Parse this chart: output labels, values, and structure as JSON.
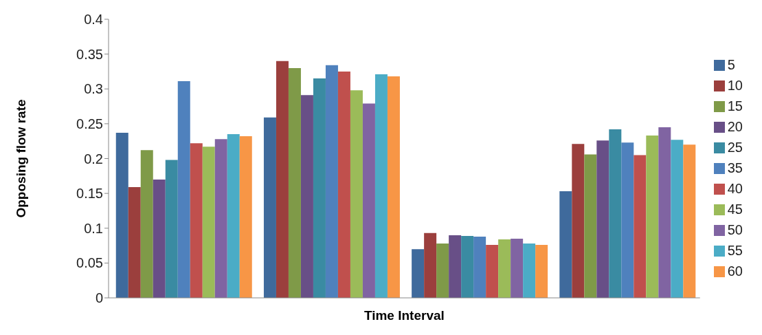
{
  "chart_data": {
    "type": "bar",
    "xlabel": "Time Interval",
    "ylabel": "Opposing flow rate",
    "categories": [
      null,
      null,
      null,
      null
    ],
    "series": [
      {
        "name": "5",
        "color": "#3f6a9c",
        "values": [
          0.237,
          0.259,
          0.07,
          0.153
        ]
      },
      {
        "name": "10",
        "color": "#9b3f3d",
        "values": [
          0.159,
          0.34,
          0.093,
          0.221
        ]
      },
      {
        "name": "15",
        "color": "#7f9a48",
        "values": [
          0.212,
          0.33,
          0.078,
          0.206
        ]
      },
      {
        "name": "20",
        "color": "#684f87",
        "values": [
          0.17,
          0.291,
          0.09,
          0.226
        ]
      },
      {
        "name": "25",
        "color": "#3a8ba2",
        "values": [
          0.198,
          0.315,
          0.089,
          0.242
        ]
      },
      {
        "name": "35",
        "color": "#4f81bd",
        "values": [
          0.311,
          0.334,
          0.088,
          0.223
        ]
      },
      {
        "name": "40",
        "color": "#c0504d",
        "values": [
          0.222,
          0.325,
          0.076,
          0.205
        ]
      },
      {
        "name": "45",
        "color": "#9bbb59",
        "values": [
          0.217,
          0.298,
          0.084,
          0.233
        ]
      },
      {
        "name": "50",
        "color": "#8064a2",
        "values": [
          0.228,
          0.279,
          0.085,
          0.245
        ]
      },
      {
        "name": "55",
        "color": "#4bacc6",
        "values": [
          0.235,
          0.321,
          0.078,
          0.227
        ]
      },
      {
        "name": "60",
        "color": "#f79646",
        "values": [
          0.232,
          0.318,
          0.076,
          0.22
        ]
      }
    ],
    "ylim": [
      0,
      0.4
    ],
    "yticks": [
      0,
      0.05,
      0.1,
      0.15,
      0.2,
      0.25,
      0.3,
      0.35,
      0.4
    ],
    "grid": false,
    "legend": "right",
    "tick_labels": "y"
  }
}
